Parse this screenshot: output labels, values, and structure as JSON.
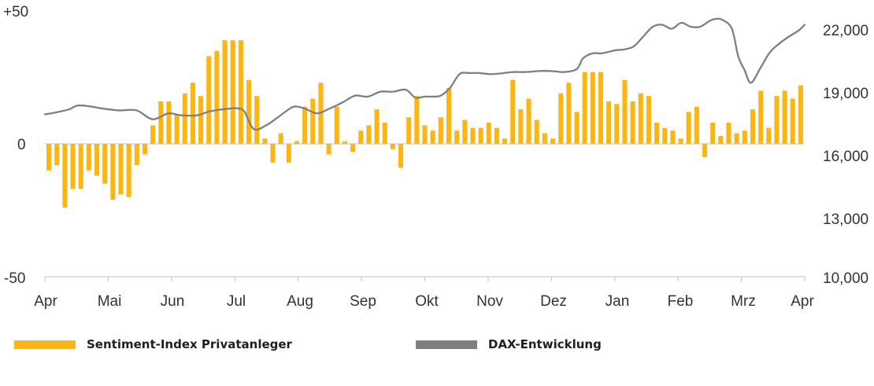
{
  "chart_data": {
    "type": "bar+line",
    "title": "",
    "legend": [
      {
        "label": "Sentiment-Index Privatanleger",
        "color": "#FBB614"
      },
      {
        "label": "DAX-Entwicklung",
        "color": "#7F7F7F"
      }
    ],
    "left_axis": {
      "ylim": [
        -50,
        50
      ],
      "ticks": [
        "+50",
        "0",
        "-50"
      ],
      "tick_values": [
        50,
        0,
        -50
      ]
    },
    "right_axis": {
      "ylim": [
        10000,
        23500
      ],
      "ticks": [
        "22,000",
        "19,000",
        "16,000",
        "13,000",
        "10,000"
      ],
      "tick_values": [
        22000,
        19000,
        16000,
        13000,
        10000
      ]
    },
    "x_axis": {
      "months": [
        "Apr",
        "Mai",
        "Jun",
        "Jul",
        "Aug",
        "Sep",
        "Okt",
        "Nov",
        "Dez",
        "Jan",
        "Feb",
        "Mrz",
        "Apr"
      ]
    },
    "series": [
      {
        "name": "Sentiment-Index Privatanleger",
        "kind": "bar",
        "color": "#FBB614",
        "values": [
          -10,
          -8,
          -24,
          -17,
          -17,
          -10,
          -12,
          -15,
          -21,
          -19,
          -20,
          -8,
          -4,
          7,
          16,
          16,
          11,
          19,
          23,
          18,
          33,
          35,
          39,
          39,
          39,
          24,
          18,
          2,
          -7,
          4,
          -7,
          1,
          14,
          17,
          23,
          -4,
          14,
          1,
          -3,
          5,
          7,
          13,
          8,
          -2,
          -9,
          10,
          18,
          7,
          5,
          10,
          21,
          5,
          9,
          6,
          6,
          8,
          6,
          2,
          24,
          13,
          17,
          9,
          4,
          2,
          19,
          23,
          12,
          27,
          27,
          27,
          16,
          15,
          24,
          16,
          19,
          18,
          8,
          6,
          5,
          2,
          12,
          14,
          -5,
          8,
          3,
          8,
          4,
          5,
          13,
          20,
          6,
          18,
          20,
          17,
          22
        ]
      },
      {
        "name": "DAX-Entwicklung",
        "kind": "line",
        "color": "#7F7F7F",
        "x": [
          0,
          0.18,
          0.38,
          0.52,
          0.72,
          0.9,
          1.02,
          1.18,
          1.45,
          1.7,
          1.95,
          2.15,
          2.4,
          2.6,
          2.8,
          2.95,
          3.05,
          3.15,
          3.3,
          3.5,
          3.7,
          3.85,
          3.95,
          4.1,
          4.3,
          4.5,
          4.7,
          4.9,
          5.1,
          5.3,
          5.5,
          5.7,
          5.85,
          6.0,
          6.1,
          6.25,
          6.4,
          6.55,
          6.7,
          6.85,
          7.0,
          7.1,
          7.25,
          7.4,
          7.6,
          7.8,
          8.0,
          8.2,
          8.4,
          8.5,
          8.65,
          8.8,
          9.0,
          9.15,
          9.3,
          9.45,
          9.6,
          9.75,
          9.9,
          10.05,
          10.2,
          10.35,
          10.5,
          10.6,
          10.7,
          10.85,
          10.95,
          11.05,
          11.15,
          11.3,
          11.45,
          11.6,
          11.75,
          11.9,
          12.0
        ],
        "values": [
          18250,
          18350,
          18500,
          18700,
          18650,
          18550,
          18500,
          18450,
          18450,
          18000,
          18300,
          18200,
          18200,
          18400,
          18500,
          18550,
          18550,
          18400,
          17500,
          17700,
          18150,
          18500,
          18650,
          18550,
          18300,
          18550,
          18850,
          19200,
          19150,
          19400,
          19400,
          19500,
          19100,
          19150,
          19150,
          19200,
          19600,
          20300,
          20350,
          20350,
          20300,
          20300,
          20350,
          20400,
          20400,
          20450,
          20450,
          20400,
          20550,
          21100,
          21350,
          21350,
          21500,
          21550,
          21700,
          22200,
          22700,
          22800,
          22600,
          22900,
          22700,
          22700,
          23000,
          23100,
          23050,
          22600,
          21200,
          20500,
          19850,
          20600,
          21400,
          21850,
          22200,
          22500,
          22800
        ]
      }
    ]
  }
}
